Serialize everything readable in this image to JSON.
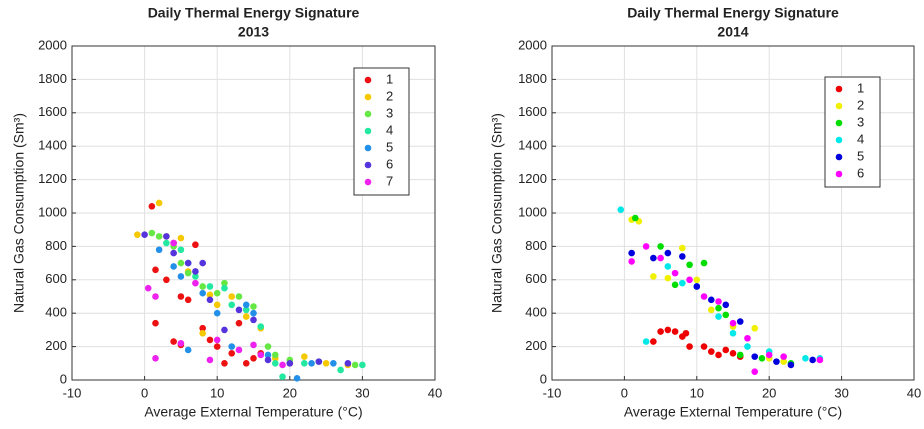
{
  "chart_data": [
    {
      "type": "scatter",
      "title": "Daily Thermal Energy Signature",
      "subtitle": "2013",
      "xlabel": "Average External Temperature (°C)",
      "ylabel": "Natural Gas Consumption (Sm³)",
      "xlim": [
        -10,
        40
      ],
      "xticks": [
        -10,
        0,
        10,
        20,
        30,
        40
      ],
      "ylim": [
        0,
        2000
      ],
      "yticks": [
        0,
        200,
        400,
        600,
        800,
        1000,
        1200,
        1400,
        1600,
        1800,
        2000
      ],
      "grid": true,
      "legend": "upper right",
      "series": [
        {
          "name": "1",
          "color": "#ee1111",
          "x": [
            1,
            1.5,
            1.5,
            3,
            4,
            5,
            6,
            7,
            8,
            9,
            10,
            11,
            12,
            13,
            14,
            15,
            16,
            20,
            4,
            5
          ],
          "values": [
            1040,
            660,
            340,
            600,
            820,
            500,
            480,
            810,
            310,
            240,
            200,
            100,
            160,
            340,
            100,
            130,
            160,
            100,
            230,
            210
          ]
        },
        {
          "name": "2",
          "color": "#f5c800",
          "x": [
            -1,
            2,
            3,
            5,
            6,
            8,
            9,
            10,
            12,
            14,
            16,
            18,
            22,
            25,
            28
          ],
          "values": [
            870,
            1060,
            860,
            850,
            650,
            280,
            510,
            450,
            500,
            380,
            310,
            130,
            140,
            100,
            90
          ]
        },
        {
          "name": "3",
          "color": "#66e844",
          "x": [
            1,
            2,
            4,
            5,
            6,
            8,
            10,
            11,
            13,
            15,
            17,
            18,
            20,
            24,
            29
          ],
          "values": [
            880,
            860,
            800,
            700,
            640,
            560,
            520,
            580,
            500,
            440,
            200,
            150,
            120,
            110,
            90
          ]
        },
        {
          "name": "4",
          "color": "#22e8a0",
          "x": [
            3,
            5,
            6,
            7,
            9,
            11,
            12,
            14,
            16,
            18,
            19,
            22,
            27,
            30
          ],
          "values": [
            820,
            780,
            700,
            620,
            560,
            550,
            450,
            420,
            320,
            100,
            20,
            100,
            60,
            90
          ]
        },
        {
          "name": "5",
          "color": "#2290e8",
          "x": [
            2,
            4,
            5,
            6,
            8,
            10,
            12,
            14,
            15,
            17,
            21,
            23,
            26
          ],
          "values": [
            780,
            680,
            620,
            180,
            520,
            400,
            200,
            450,
            400,
            150,
            10,
            100,
            100
          ]
        },
        {
          "name": "6",
          "color": "#5533dd",
          "x": [
            0,
            3,
            4,
            6,
            7,
            8,
            9,
            11,
            13,
            15,
            17,
            20,
            24,
            28
          ],
          "values": [
            870,
            860,
            760,
            700,
            650,
            700,
            480,
            300,
            420,
            360,
            120,
            100,
            110,
            100
          ]
        },
        {
          "name": "7",
          "color": "#ee22ee",
          "x": [
            0.5,
            1.5,
            1.5,
            4,
            5,
            7,
            9,
            10,
            13,
            15,
            16,
            19
          ],
          "values": [
            550,
            130,
            500,
            820,
            220,
            580,
            120,
            240,
            180,
            210,
            150,
            90
          ]
        }
      ]
    },
    {
      "type": "scatter",
      "title": "Daily Thermal Energy Signature",
      "subtitle": "2014",
      "xlabel": "Average External Temperature (°C)",
      "ylabel": "Natural Gas Consumption (Sm³)",
      "xlim": [
        -10,
        40
      ],
      "xticks": [
        -10,
        0,
        10,
        20,
        30,
        40
      ],
      "ylim": [
        0,
        2000
      ],
      "yticks": [
        0,
        200,
        400,
        600,
        800,
        1000,
        1200,
        1400,
        1600,
        1800,
        2000
      ],
      "grid": true,
      "legend": "upper right",
      "series": [
        {
          "name": "1",
          "color": "#ee0000",
          "x": [
            4,
            5,
            6,
            7,
            8,
            8.5,
            9,
            11,
            12,
            13,
            14,
            15,
            16
          ],
          "values": [
            230,
            290,
            300,
            290,
            260,
            280,
            200,
            200,
            170,
            150,
            180,
            160,
            140
          ]
        },
        {
          "name": "2",
          "color": "#f0f000",
          "x": [
            1,
            2,
            4,
            6,
            8,
            10,
            12,
            15,
            18,
            20,
            22
          ],
          "values": [
            960,
            950,
            620,
            610,
            790,
            600,
            420,
            320,
            310,
            130,
            110
          ]
        },
        {
          "name": "3",
          "color": "#00dd00",
          "x": [
            1.5,
            5,
            7,
            9,
            11,
            13,
            14,
            16,
            19,
            23
          ],
          "values": [
            970,
            800,
            570,
            690,
            700,
            430,
            390,
            150,
            130,
            100
          ]
        },
        {
          "name": "4",
          "color": "#00e8e8",
          "x": [
            -0.5,
            3,
            6,
            8,
            10,
            13,
            15,
            17,
            20,
            25,
            27
          ],
          "values": [
            1020,
            230,
            680,
            580,
            560,
            380,
            280,
            200,
            170,
            130,
            130
          ]
        },
        {
          "name": "5",
          "color": "#0000dd",
          "x": [
            1,
            4,
            6,
            8,
            10,
            12,
            14,
            16,
            18,
            21,
            23,
            26
          ],
          "values": [
            760,
            730,
            760,
            740,
            560,
            480,
            450,
            350,
            140,
            110,
            90,
            120
          ]
        },
        {
          "name": "6",
          "color": "#ff00ff",
          "x": [
            1,
            3,
            5,
            7,
            9,
            11,
            13,
            15,
            17,
            18,
            20,
            22,
            27
          ],
          "values": [
            710,
            800,
            730,
            640,
            600,
            500,
            470,
            340,
            250,
            50,
            150,
            140,
            120
          ]
        }
      ]
    }
  ]
}
